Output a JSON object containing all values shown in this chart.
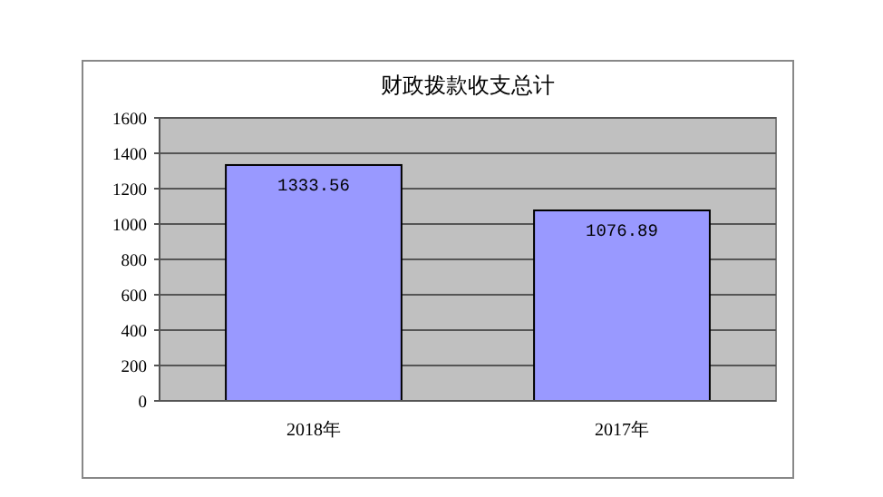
{
  "chart_data": {
    "type": "bar",
    "title": "财政拨款收支总计",
    "categories": [
      "2018年",
      "2017年"
    ],
    "values": [
      1333.56,
      1076.89
    ],
    "color": "#9999ff",
    "ylim": [
      0,
      1600
    ],
    "yticks": [
      0,
      200,
      400,
      600,
      800,
      1000,
      1200,
      1400,
      1600
    ],
    "grid": "y",
    "data_labels": true
  }
}
